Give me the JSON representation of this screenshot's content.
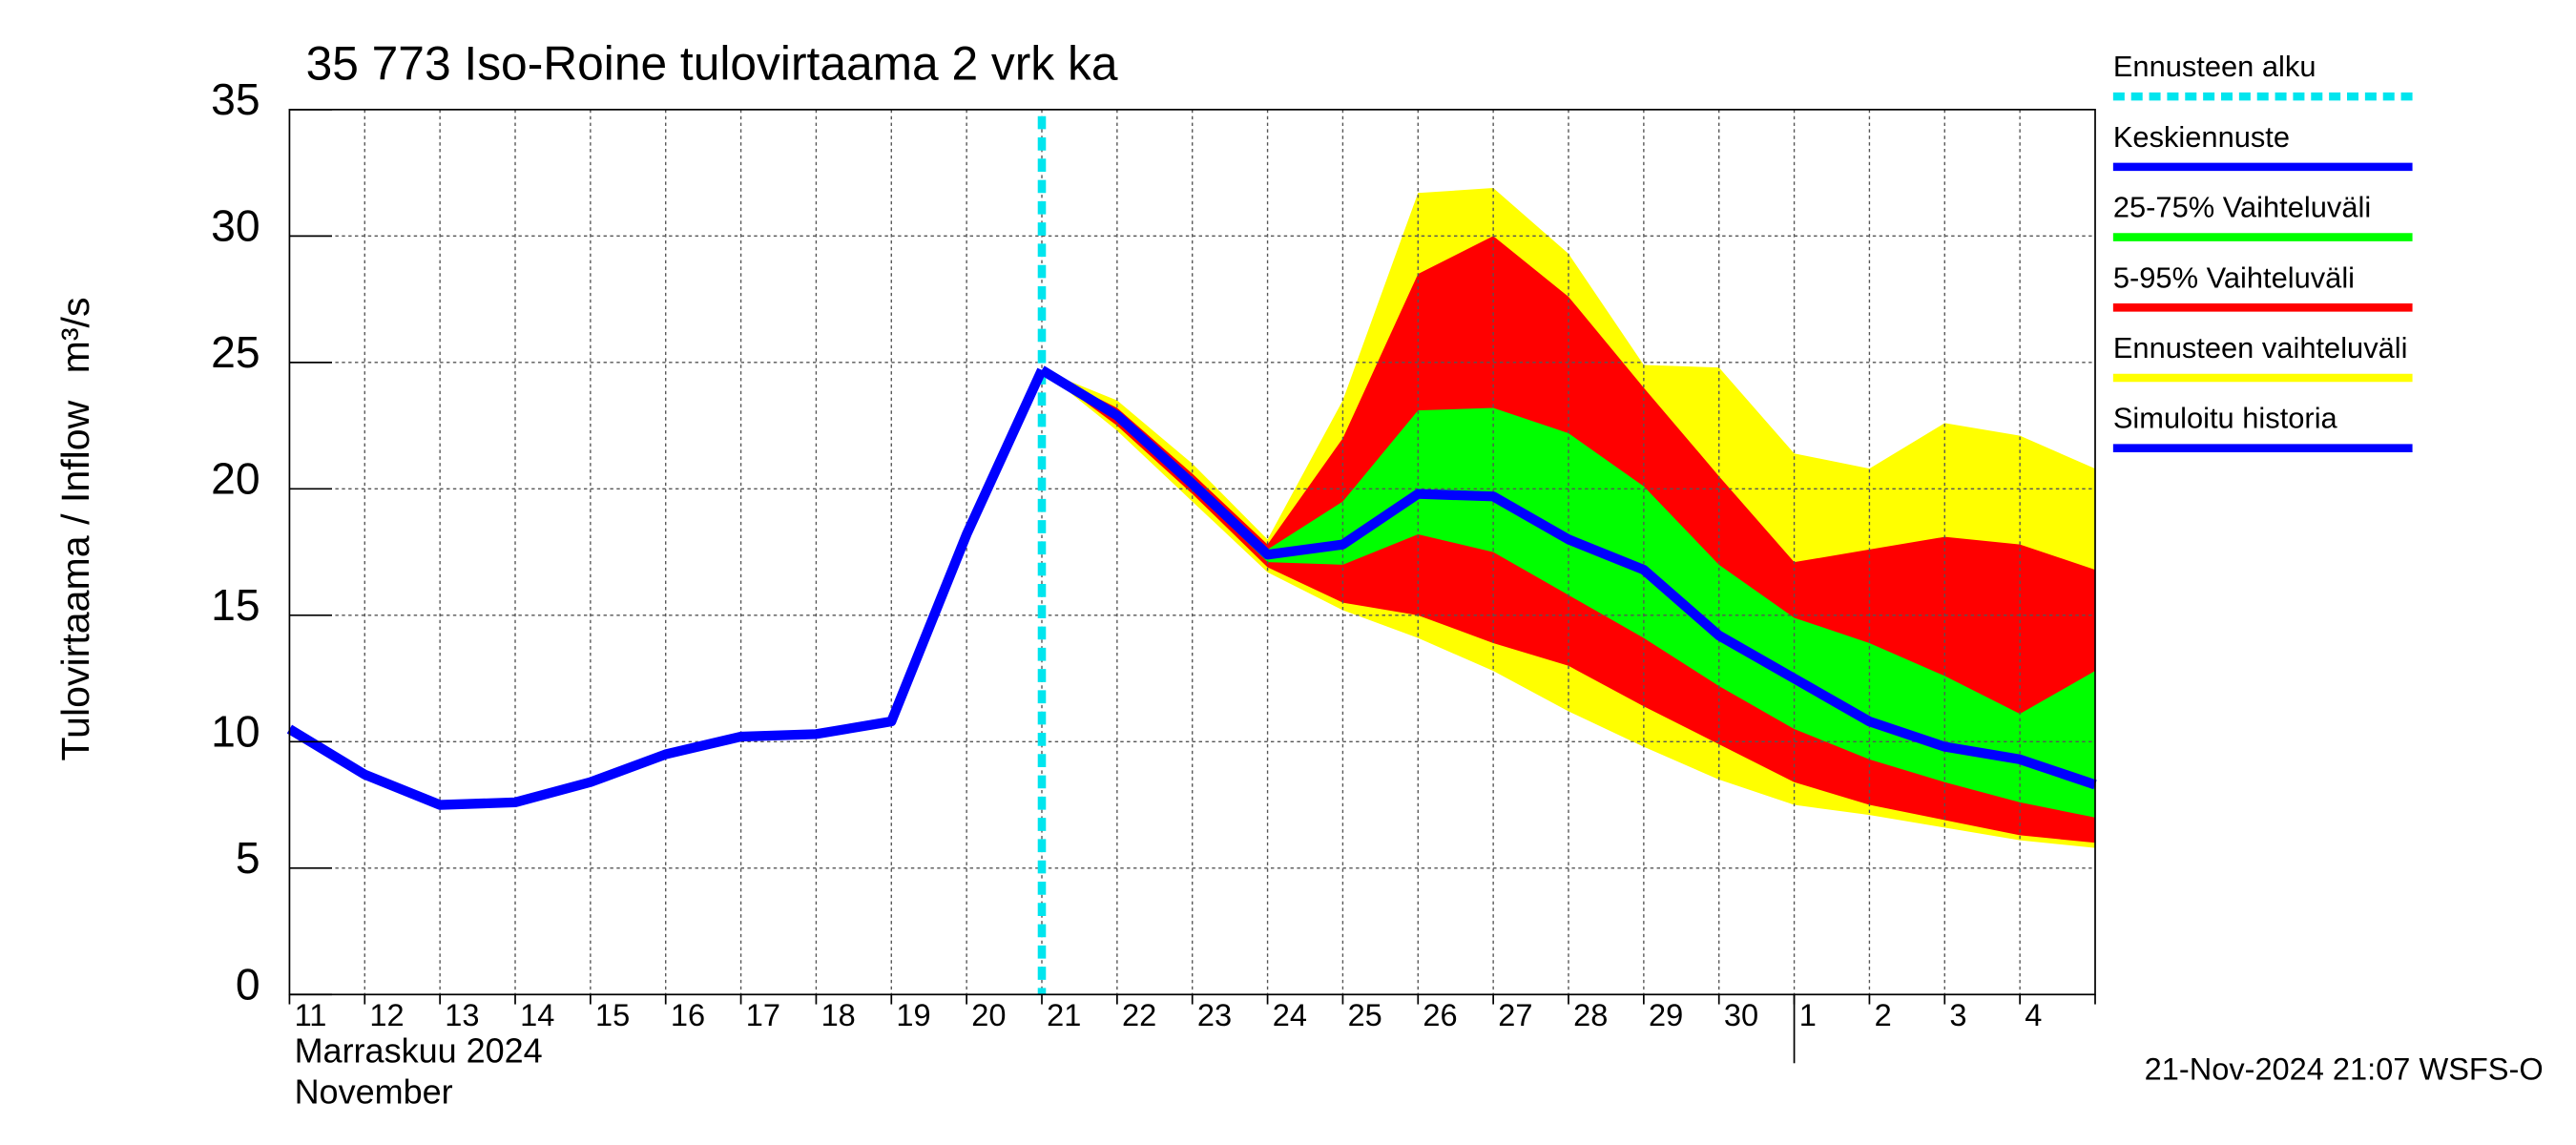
{
  "chart_data": {
    "type": "line",
    "title": "35 773 Iso-Roine tulovirtaama 2 vrk ka",
    "y_label": "Tulovirtaama / Inflow",
    "y_unit": "m³/s",
    "month_label": "Marraskuu 2024",
    "month_label_en": "November",
    "timestamp": "21-Nov-2024 21:07 WSFS-O",
    "categories": [
      "11",
      "12",
      "13",
      "14",
      "15",
      "16",
      "17",
      "18",
      "19",
      "20",
      "21",
      "22",
      "23",
      "24",
      "25",
      "26",
      "27",
      "28",
      "29",
      "30",
      "1",
      "2",
      "3",
      "4",
      null
    ],
    "ylim": [
      0,
      35
    ],
    "yticks": [
      0,
      5,
      10,
      15,
      20,
      25,
      30,
      35
    ],
    "grid": true,
    "forecast_start": {
      "name": "Ennusteen alku",
      "color": "#00e5ee",
      "category": "21"
    },
    "series": [
      {
        "name": "Keskiennuste",
        "color": "#0000ff",
        "values": [
          null,
          null,
          null,
          null,
          null,
          null,
          null,
          null,
          null,
          null,
          24.7,
          22.9,
          20.2,
          17.4,
          17.8,
          19.8,
          19.7,
          18.0,
          16.8,
          14.2,
          12.5,
          10.8,
          9.8,
          9.3,
          8.3
        ]
      },
      {
        "name": "Simuloitu historia",
        "color": "#0000ff",
        "values": [
          10.5,
          8.7,
          7.5,
          7.6,
          8.4,
          9.5,
          10.2,
          10.3,
          10.8,
          18.2,
          24.7,
          null,
          null,
          null,
          null,
          null,
          null,
          null,
          null,
          null,
          null,
          null,
          null,
          null,
          null
        ]
      }
    ],
    "bands": [
      {
        "name": "Ennusteen vaihteluväli",
        "color": "#ffff00",
        "upper": [
          null,
          null,
          null,
          null,
          null,
          null,
          null,
          null,
          null,
          null,
          24.7,
          23.5,
          21.0,
          18.0,
          23.5,
          31.7,
          31.9,
          29.3,
          24.9,
          24.8,
          21.4,
          20.8,
          22.6,
          22.1,
          20.8
        ],
        "lower": [
          null,
          null,
          null,
          null,
          null,
          null,
          null,
          null,
          null,
          null,
          24.7,
          22.3,
          19.5,
          16.7,
          15.2,
          14.1,
          12.8,
          11.2,
          9.8,
          8.5,
          7.5,
          7.1,
          6.6,
          6.1,
          5.8
        ]
      },
      {
        "name": "5-95% Vaihteluväli",
        "color": "#ff0000",
        "upper": [
          null,
          null,
          null,
          null,
          null,
          null,
          null,
          null,
          null,
          null,
          24.7,
          23.2,
          20.6,
          17.8,
          22.0,
          28.5,
          30.0,
          27.6,
          24.0,
          20.5,
          17.1,
          17.6,
          18.1,
          17.8,
          16.8
        ],
        "lower": [
          null,
          null,
          null,
          null,
          null,
          null,
          null,
          null,
          null,
          null,
          24.7,
          22.5,
          19.8,
          16.9,
          15.5,
          15.0,
          13.9,
          13.0,
          11.4,
          9.9,
          8.4,
          7.5,
          6.9,
          6.3,
          6.0
        ]
      },
      {
        "name": "25-75% Vaihteluväli",
        "color": "#00ff00",
        "upper": [
          null,
          null,
          null,
          null,
          null,
          null,
          null,
          null,
          null,
          null,
          24.7,
          23.0,
          20.4,
          17.6,
          19.5,
          23.1,
          23.2,
          22.2,
          20.1,
          17.0,
          14.9,
          13.9,
          12.6,
          11.1,
          12.8
        ],
        "lower": [
          null,
          null,
          null,
          null,
          null,
          null,
          null,
          null,
          null,
          null,
          24.7,
          22.7,
          20.0,
          17.1,
          17.0,
          18.2,
          17.5,
          15.8,
          14.1,
          12.2,
          10.5,
          9.3,
          8.4,
          7.6,
          7.0
        ]
      }
    ]
  }
}
